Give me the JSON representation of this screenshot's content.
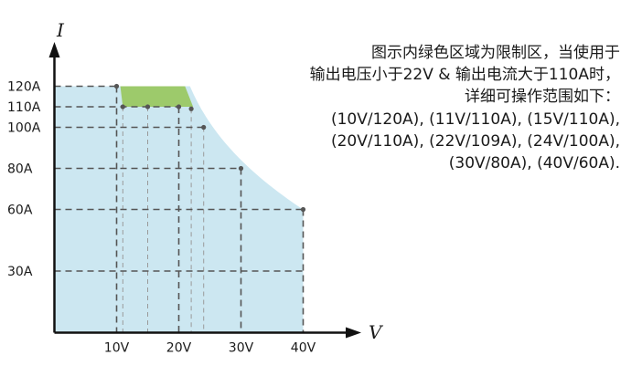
{
  "chart_data": {
    "type": "area",
    "xlabel": "V",
    "ylabel": "I",
    "xlim": [
      0,
      50
    ],
    "ylim": [
      0,
      140
    ],
    "x_ticks": [
      {
        "value": 10,
        "label": "10V"
      },
      {
        "value": 20,
        "label": "20V"
      },
      {
        "value": 30,
        "label": "30V"
      },
      {
        "value": 40,
        "label": "40V"
      }
    ],
    "y_ticks": [
      {
        "value": 120,
        "label": "120A"
      },
      {
        "value": 110,
        "label": "110A"
      },
      {
        "value": 100,
        "label": "100A"
      },
      {
        "value": 80,
        "label": "80A"
      },
      {
        "value": 60,
        "label": "60A"
      },
      {
        "value": 30,
        "label": "30A"
      }
    ],
    "operating_points": [
      {
        "x": 10,
        "y": 120
      },
      {
        "x": 11,
        "y": 110
      },
      {
        "x": 15,
        "y": 110
      },
      {
        "x": 20,
        "y": 110
      },
      {
        "x": 22,
        "y": 109
      },
      {
        "x": 24,
        "y": 100
      },
      {
        "x": 30,
        "y": 80
      },
      {
        "x": 40,
        "y": 60
      }
    ],
    "restricted_region": {
      "v_max": 22,
      "i_min": 110,
      "i_max": 120,
      "v_at_max_current": 21,
      "color": "#9dca6b"
    },
    "area_color": "#cce7f1",
    "grid_color": "#555555",
    "note_lines": [
      "图示内绿色区域为限制区，当使用于",
      "输出电压小于22V & 输出电流大于110A时，",
      "详细可操作范围如下：",
      "(10V/120A), (11V/110A), (15V/110A),",
      "(20V/110A), (22V/109A), (24V/100A),",
      "(30V/80A), (40V/60A)."
    ]
  }
}
